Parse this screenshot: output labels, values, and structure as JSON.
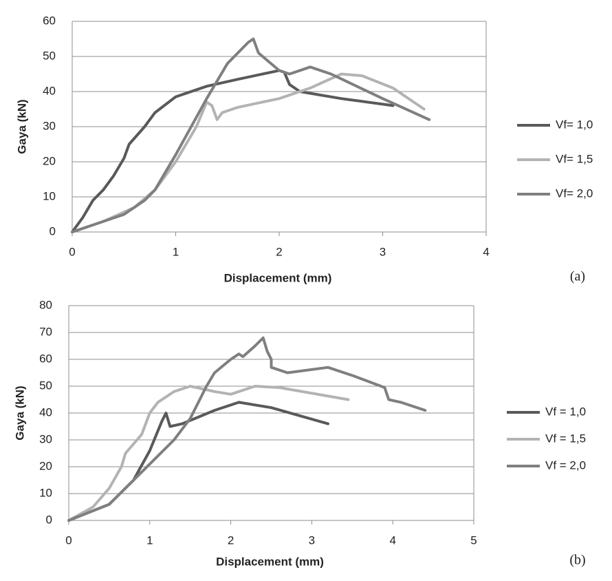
{
  "chart_data": [
    {
      "type": "line",
      "panel_label": "(a)",
      "x_label": "Displacement (mm)",
      "y_label": "Gaya (kN)",
      "xlim": [
        0,
        4
      ],
      "xticks": [
        0,
        1,
        2,
        3,
        4
      ],
      "ylim": [
        0,
        60
      ],
      "yticks": [
        0,
        10,
        20,
        30,
        40,
        50,
        60
      ],
      "grid": true,
      "series": [
        {
          "name": "Vf= 1,0",
          "color": "#595959",
          "x": [
            0,
            0.1,
            0.2,
            0.3,
            0.4,
            0.5,
            0.55,
            0.7,
            0.8,
            1,
            1.3,
            1.6,
            2,
            2.05,
            2.1,
            2.2,
            2.6,
            3.1
          ],
          "values": [
            0,
            4,
            9,
            12,
            16,
            21,
            25,
            30,
            34,
            38.5,
            41.5,
            43.5,
            46,
            45.5,
            42,
            40,
            38,
            36
          ]
        },
        {
          "name": "Vf= 1,5",
          "color": "#b3b3b3",
          "x": [
            0,
            0.3,
            0.6,
            0.8,
            1,
            1.2,
            1.3,
            1.35,
            1.4,
            1.45,
            1.6,
            2,
            2.3,
            2.6,
            2.8,
            3.1,
            3.4
          ],
          "values": [
            0,
            3,
            7,
            12,
            20,
            30,
            37,
            36,
            32,
            34,
            35.5,
            38,
            41,
            45,
            44.5,
            41,
            35
          ]
        },
        {
          "name": "Vf= 2,0",
          "color": "#7f7f7f",
          "x": [
            0,
            0.5,
            0.7,
            0.8,
            1,
            1.3,
            1.5,
            1.7,
            1.75,
            1.8,
            2,
            2.1,
            2.3,
            2.5,
            3,
            3.45
          ],
          "values": [
            0,
            5,
            9,
            12,
            22,
            38,
            48,
            54,
            55,
            51,
            46,
            45,
            47,
            45,
            38,
            32
          ]
        }
      ]
    },
    {
      "type": "line",
      "panel_label": "(b)",
      "x_label": "Displacement (mm)",
      "y_label": "Gaya (kN)",
      "xlim": [
        0,
        5
      ],
      "xticks": [
        0,
        1,
        2,
        3,
        4,
        5
      ],
      "ylim": [
        0,
        80
      ],
      "yticks": [
        0,
        10,
        20,
        30,
        40,
        50,
        60,
        70,
        80
      ],
      "grid": true,
      "series": [
        {
          "name": "Vf = 1,0",
          "color": "#595959",
          "x": [
            0,
            0.5,
            0.8,
            1,
            1.15,
            1.2,
            1.25,
            1.4,
            1.8,
            2.1,
            2.5,
            3.2
          ],
          "values": [
            0,
            6,
            15,
            26,
            37,
            40,
            35,
            36,
            41,
            44,
            42,
            36
          ]
        },
        {
          "name": "Vf = 1,5",
          "color": "#b3b3b3",
          "x": [
            0,
            0.3,
            0.5,
            0.65,
            0.7,
            0.9,
            1,
            1.1,
            1.3,
            1.5,
            1.8,
            2,
            2.1,
            2.3,
            2.6,
            3.45
          ],
          "values": [
            0,
            5,
            12,
            20,
            25,
            32,
            40,
            44,
            48,
            50,
            48,
            47,
            48,
            50,
            49.5,
            45
          ]
        },
        {
          "name": "Vf = 2,0",
          "color": "#7f7f7f",
          "x": [
            0,
            0.5,
            1,
            1.3,
            1.5,
            1.7,
            1.8,
            2,
            2.1,
            2.15,
            2.3,
            2.4,
            2.45,
            2.5,
            2.5,
            2.7,
            3.2,
            3.5,
            3.9,
            3.95,
            4.1,
            4.4
          ],
          "values": [
            0,
            6,
            21,
            30,
            38,
            50,
            55,
            60,
            62,
            61,
            65,
            68,
            63,
            60,
            57,
            55,
            57,
            54,
            49.5,
            45,
            44,
            41
          ]
        }
      ]
    }
  ]
}
